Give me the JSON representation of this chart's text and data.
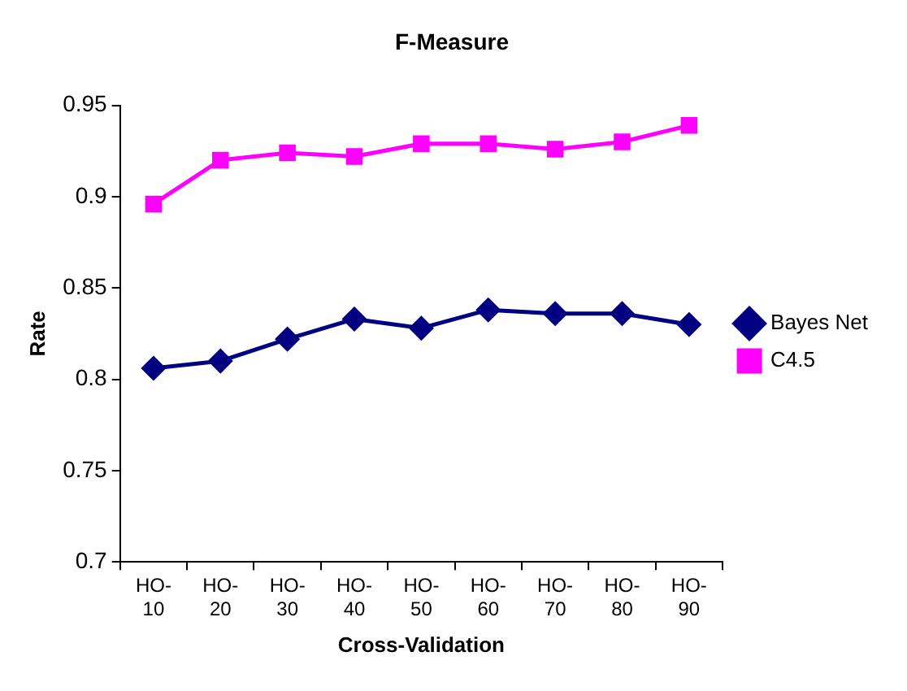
{
  "chart_data": {
    "type": "line",
    "title": "F-Measure",
    "xlabel": "Cross-Validation",
    "ylabel": "Rate",
    "categories": [
      "HO-10",
      "HO-20",
      "HO-30",
      "HO-40",
      "HO-50",
      "HO-60",
      "HO-70",
      "HO-80",
      "HO-90"
    ],
    "series": [
      {
        "name": "Bayes Net",
        "color": "#000080",
        "marker": "diamond",
        "values": [
          0.806,
          0.81,
          0.822,
          0.833,
          0.828,
          0.838,
          0.836,
          0.836,
          0.83
        ]
      },
      {
        "name": "C4.5",
        "color": "#ff00ff",
        "marker": "square",
        "values": [
          0.896,
          0.92,
          0.924,
          0.922,
          0.929,
          0.929,
          0.926,
          0.93,
          0.939
        ]
      }
    ],
    "ylim": [
      0.7,
      0.95
    ],
    "yticks": [
      0.7,
      0.75,
      0.8,
      0.85,
      0.9,
      0.95
    ],
    "grid": false,
    "legend": "right",
    "line_style": "solid"
  }
}
